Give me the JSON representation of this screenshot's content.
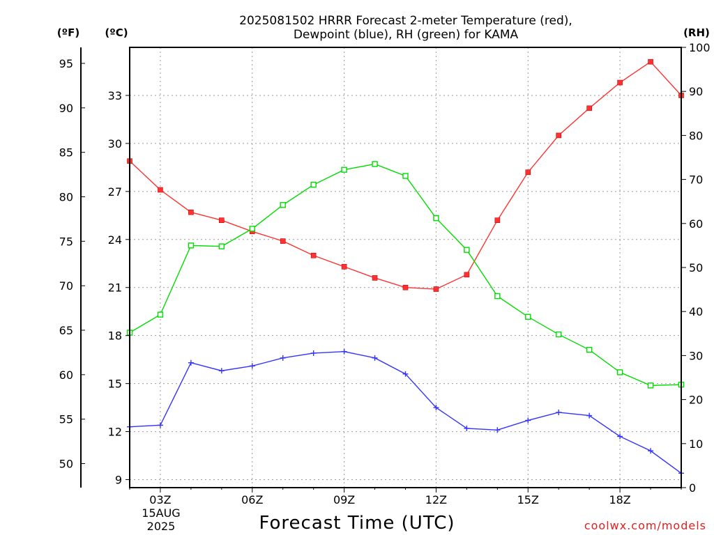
{
  "title_lines": [
    "2025081502 HRRR Forecast 2-meter Temperature (red),",
    "Dewpoint (blue), RH (green) for KAMA"
  ],
  "credit": "coolwx.com/models",
  "axes": {
    "left_f_unit": "(ºF)",
    "left_c_unit": "(ºC)",
    "right_rh_unit": "(RH)",
    "x_title": "Forecast Time (UTC)",
    "x_date_lines": [
      "15AUG",
      "2025"
    ]
  },
  "colors": {
    "temperature": "#ff3333",
    "dewpoint": "#3333ff",
    "rh": "#00dd00"
  },
  "chart_data": {
    "type": "line",
    "title": "2025081502 HRRR Forecast 2-meter Temperature (red), Dewpoint (blue), RH (green) for KAMA",
    "xlabel": "Forecast Time (UTC)",
    "x": [
      "02Z",
      "03Z",
      "04Z",
      "05Z",
      "06Z",
      "07Z",
      "08Z",
      "09Z",
      "10Z",
      "11Z",
      "12Z",
      "13Z",
      "14Z",
      "15Z",
      "16Z",
      "17Z",
      "18Z",
      "19Z",
      "20Z"
    ],
    "x_tick_labels": [
      "03Z",
      "06Z",
      "09Z",
      "12Z",
      "15Z",
      "18Z"
    ],
    "grid": true,
    "axes": {
      "fahrenheit": {
        "label": "(ºF)",
        "ticks": [
          50,
          55,
          60,
          65,
          70,
          75,
          80,
          85,
          90,
          95
        ],
        "range": [
          47.3,
          96.8
        ]
      },
      "celsius": {
        "label": "(ºC)",
        "ticks": [
          9,
          12,
          15,
          18,
          21,
          24,
          27,
          30,
          33
        ],
        "range": [
          8.5,
          36
        ]
      },
      "rh": {
        "label": "(RH)",
        "ticks": [
          0,
          10,
          20,
          30,
          40,
          50,
          60,
          70,
          80,
          90,
          100
        ],
        "range": [
          0,
          100
        ]
      }
    },
    "series": [
      {
        "name": "Temperature",
        "color": "#ff3333",
        "marker": "filled-square",
        "axis": "celsius",
        "values": [
          28.9,
          27.1,
          25.7,
          25.2,
          24.5,
          23.9,
          23.0,
          22.3,
          21.6,
          21.0,
          20.9,
          21.8,
          25.2,
          28.2,
          30.5,
          32.2,
          33.8,
          35.1,
          33.0
        ]
      },
      {
        "name": "Dewpoint",
        "color": "#3333ff",
        "marker": "plus",
        "axis": "celsius",
        "values": [
          12.3,
          12.4,
          16.3,
          15.8,
          16.1,
          16.6,
          16.9,
          17.0,
          16.6,
          15.6,
          13.5,
          12.2,
          12.1,
          12.7,
          13.2,
          13.0,
          11.7,
          10.8,
          9.4
        ]
      },
      {
        "name": "RH",
        "color": "#00dd00",
        "marker": "open-square",
        "axis": "rh",
        "values": [
          35.2,
          39.3,
          55.0,
          54.8,
          58.8,
          64.2,
          68.8,
          72.2,
          73.5,
          70.8,
          61.2,
          54.0,
          43.5,
          38.8,
          34.8,
          31.3,
          26.2,
          23.2,
          23.4
        ]
      }
    ]
  }
}
